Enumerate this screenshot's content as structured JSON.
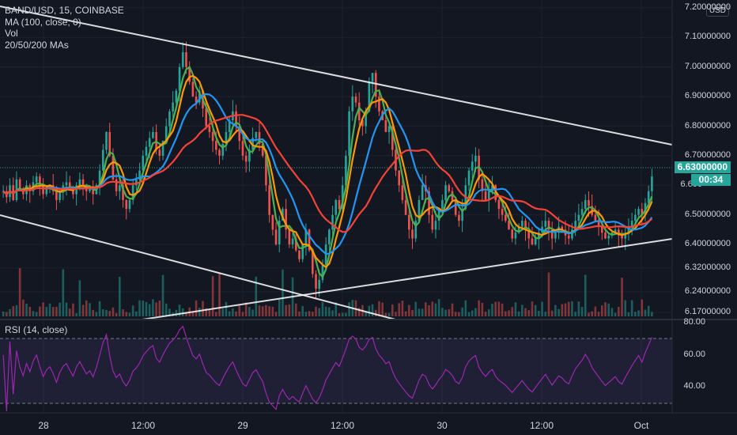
{
  "legend": {
    "symbol": "BAND/USD, 15, COINBASE",
    "ma": "MA (100, close, 0)",
    "vol": "Vol",
    "mas": "20/50/200 MAs"
  },
  "rsi_legend": "RSI (14, close)",
  "currency": "USD",
  "price_axis": [
    "7.20000000",
    "7.10000000",
    "7.00000000",
    "6.90000000",
    "6.80000000",
    "6.70000000",
    "6.600",
    "6.50000000",
    "6.40000000",
    "6.32000000",
    "6.24000000",
    "6.17000000"
  ],
  "rsi_axis": [
    "80.00",
    "60.00",
    "40.00"
  ],
  "time_axis": [
    "28",
    "12:00",
    "29",
    "12:00",
    "30",
    "12:00",
    "Oct"
  ],
  "current_price": "6.63000000",
  "countdown": "00:34",
  "colors": {
    "up": "#26a69a",
    "down": "#ef5350",
    "ma20": "#4caf50",
    "ma50": "#ff9800",
    "ma100": "#2196f3",
    "ma200": "#f44336",
    "rsi": "#9c27b0",
    "trendline": "#ffffff",
    "price_tag": "#26a69a",
    "countdown_tag": "#26a69a"
  },
  "chart_data": {
    "type": "line",
    "symbol": "BAND/USD",
    "interval": "15",
    "exchange": "COINBASE",
    "price_range": [
      6.17,
      7.2
    ],
    "rsi_range": [
      20,
      80
    ],
    "rsi_bands": [
      30,
      70
    ],
    "close_series": [
      6.58,
      6.56,
      6.6,
      6.55,
      6.62,
      6.59,
      6.57,
      6.6,
      6.58,
      6.61,
      6.63,
      6.6,
      6.57,
      6.59,
      6.6,
      6.58,
      6.55,
      6.58,
      6.6,
      6.61,
      6.59,
      6.57,
      6.6,
      6.62,
      6.6,
      6.58,
      6.59,
      6.57,
      6.6,
      6.65,
      6.72,
      6.78,
      6.7,
      6.62,
      6.58,
      6.6,
      6.55,
      6.52,
      6.55,
      6.6,
      6.62,
      6.65,
      6.7,
      6.73,
      6.76,
      6.78,
      6.72,
      6.7,
      6.75,
      6.8,
      6.85,
      6.88,
      6.92,
      7.0,
      7.05,
      7.0,
      6.95,
      6.9,
      6.88,
      6.92,
      6.86,
      6.8,
      6.78,
      6.75,
      6.72,
      6.7,
      6.74,
      6.78,
      6.82,
      6.85,
      6.8,
      6.75,
      6.7,
      6.68,
      6.72,
      6.76,
      6.78,
      6.74,
      6.7,
      6.6,
      6.5,
      6.45,
      6.4,
      6.48,
      6.52,
      6.45,
      6.4,
      6.42,
      6.38,
      6.35,
      6.4,
      6.45,
      6.38,
      6.3,
      6.25,
      6.28,
      6.33,
      6.4,
      6.45,
      6.5,
      6.55,
      6.52,
      6.6,
      6.7,
      6.85,
      6.9,
      6.88,
      6.82,
      6.8,
      6.85,
      6.95,
      6.98,
      6.9,
      6.85,
      6.82,
      6.78,
      6.8,
      6.72,
      6.65,
      6.6,
      6.55,
      6.5,
      6.45,
      6.42,
      6.48,
      6.55,
      6.6,
      6.58,
      6.5,
      6.45,
      6.48,
      6.52,
      6.55,
      6.6,
      6.58,
      6.55,
      6.5,
      6.48,
      6.52,
      6.6,
      6.65,
      6.68,
      6.7,
      6.62,
      6.58,
      6.55,
      6.58,
      6.6,
      6.55,
      6.52,
      6.5,
      6.48,
      6.45,
      6.42,
      6.44,
      6.46,
      6.48,
      6.45,
      6.42,
      6.4,
      6.42,
      6.44,
      6.46,
      6.48,
      6.45,
      6.42,
      6.44,
      6.46,
      6.45,
      6.43,
      6.42,
      6.45,
      6.48,
      6.5,
      6.52,
      6.55,
      6.53,
      6.5,
      6.48,
      6.46,
      6.44,
      6.42,
      6.43,
      6.44,
      6.45,
      6.43,
      6.42,
      6.44,
      6.46,
      6.48,
      6.5,
      6.52,
      6.5,
      6.54,
      6.58,
      6.63
    ]
  }
}
